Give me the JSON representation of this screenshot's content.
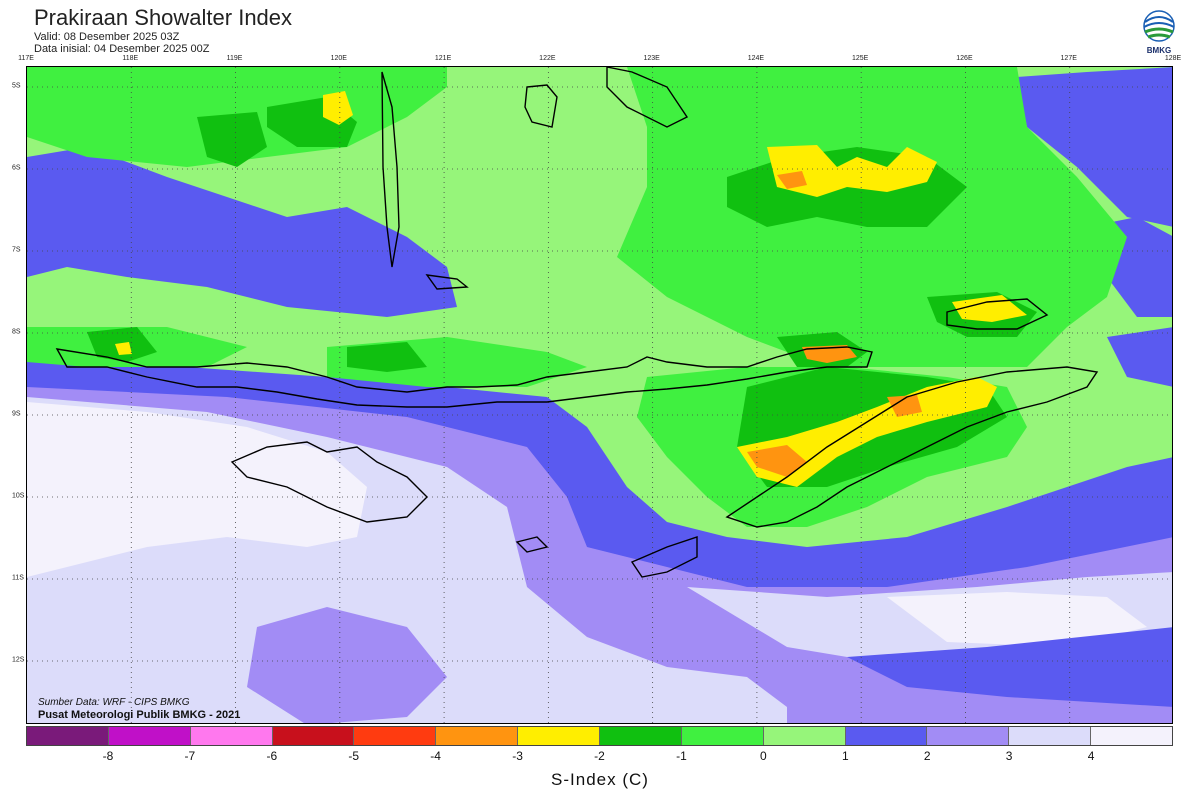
{
  "header": {
    "title": "Prakiraan Showalter Index",
    "valid": "Valid: 08 Desember 2025 03Z",
    "init": "Data inisial: 04 Desember 2025 00Z",
    "logo_text": "BMKG"
  },
  "axes": {
    "lon_labels": [
      "117E",
      "118E",
      "119E",
      "120E",
      "121E",
      "122E",
      "123E",
      "124E",
      "125E",
      "126E",
      "127E",
      "128E"
    ],
    "lat_labels": [
      "5S",
      "6S",
      "7S",
      "8S",
      "9S",
      "10S",
      "11S",
      "12S"
    ]
  },
  "credits": {
    "source": "Sumber Data: WRF - CIPS BMKG",
    "org": "Pusat Meteorologi Publik BMKG - 2021"
  },
  "colorbar": {
    "title": "S-Index (C)",
    "colors": [
      "#7a1a7a",
      "#c010c8",
      "#ff78ee",
      "#c8101c",
      "#ff3b10",
      "#ff9410",
      "#ffee00",
      "#10c010",
      "#40f040",
      "#96f57a",
      "#5a5af0",
      "#a28cf5",
      "#dcdcfa",
      "#f4f2fc"
    ],
    "ticks": [
      "-8",
      "-7",
      "-6",
      "-5",
      "-4",
      "-3",
      "-2",
      "-1",
      "0",
      "1",
      "2",
      "3",
      "4"
    ]
  }
}
